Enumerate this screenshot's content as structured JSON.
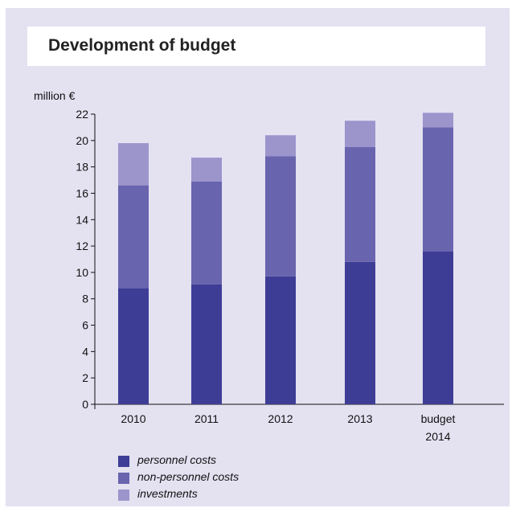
{
  "title": "Development of budget",
  "colors": {
    "background": "#e4e1f1",
    "personnel": "#3e3d96",
    "non_personnel": "#6964ae",
    "investments": "#9b95cc"
  },
  "chart_data": {
    "type": "bar",
    "stacked": true,
    "title": "Development of budget",
    "ylabel": "million €",
    "xlabel": "",
    "ylim": [
      0,
      22
    ],
    "yticks": [
      0,
      2,
      4,
      6,
      8,
      10,
      12,
      14,
      16,
      18,
      20,
      22
    ],
    "categories": [
      "2010",
      "2011",
      "2012",
      "2013",
      "budget 2014"
    ],
    "category_lines": [
      [
        "2010"
      ],
      [
        "2011"
      ],
      [
        "2012"
      ],
      [
        "2013"
      ],
      [
        "budget",
        "2014"
      ]
    ],
    "series": [
      {
        "name": "personnel costs",
        "color": "#3e3d96",
        "values": [
          8.8,
          9.1,
          9.7,
          10.8,
          11.6
        ]
      },
      {
        "name": "non-personnel costs",
        "color": "#6964ae",
        "values": [
          7.8,
          7.8,
          9.1,
          8.7,
          9.4
        ]
      },
      {
        "name": "investments",
        "color": "#9b95cc",
        "values": [
          3.2,
          1.8,
          1.6,
          2.0,
          1.1
        ]
      }
    ],
    "grid": false,
    "legend_position": "bottom-left"
  }
}
